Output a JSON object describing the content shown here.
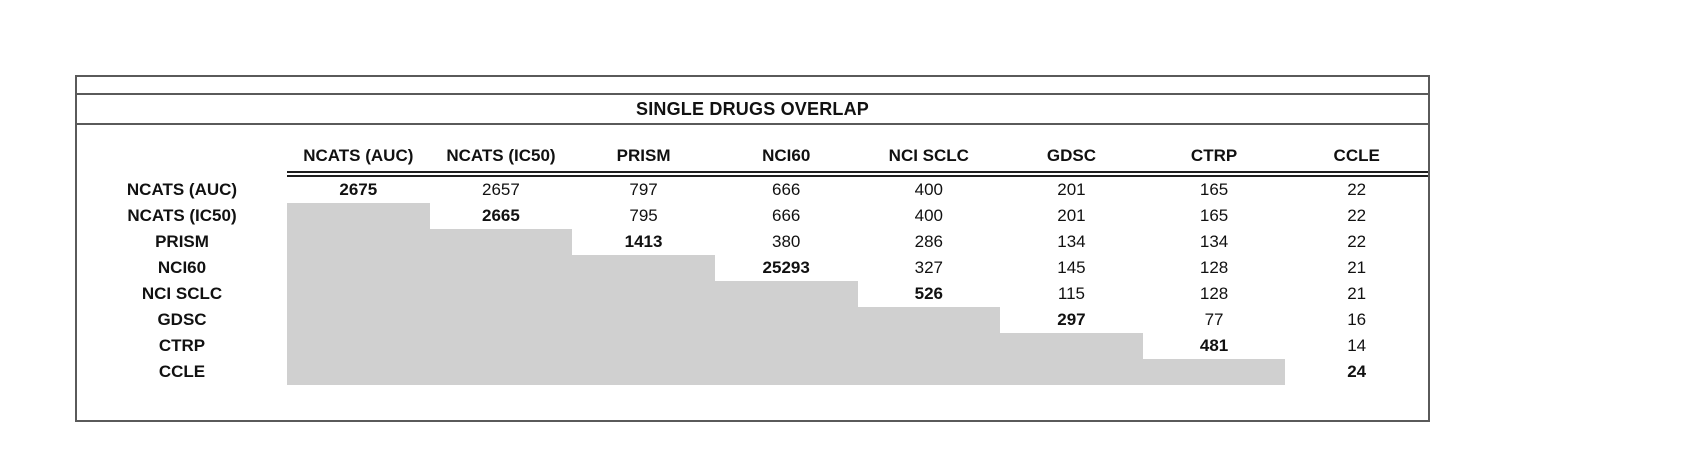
{
  "chart_data": {
    "type": "table",
    "title": "SINGLE DRUGS OVERLAP",
    "columns": [
      "NCATS (AUC)",
      "NCATS (IC50)",
      "PRISM",
      "NCI60",
      "NCI SCLC",
      "GDSC",
      "CTRP",
      "CCLE"
    ],
    "rows": [
      {
        "label": "NCATS (AUC)",
        "values": [
          "2675",
          "2657",
          "797",
          "666",
          "400",
          "201",
          "165",
          "22"
        ]
      },
      {
        "label": "NCATS (IC50)",
        "values": [
          null,
          "2665",
          "795",
          "666",
          "400",
          "201",
          "165",
          "22"
        ]
      },
      {
        "label": "PRISM",
        "values": [
          null,
          null,
          "1413",
          "380",
          "286",
          "134",
          "134",
          "22"
        ]
      },
      {
        "label": "NCI60",
        "values": [
          null,
          null,
          null,
          "25293",
          "327",
          "145",
          "128",
          "21"
        ]
      },
      {
        "label": "NCI SCLC",
        "values": [
          null,
          null,
          null,
          null,
          "526",
          "115",
          "128",
          "21"
        ]
      },
      {
        "label": "GDSC",
        "values": [
          null,
          null,
          null,
          null,
          null,
          "297",
          "77",
          "16"
        ]
      },
      {
        "label": "CTRP",
        "values": [
          null,
          null,
          null,
          null,
          null,
          null,
          "481",
          "14"
        ]
      },
      {
        "label": "CCLE",
        "values": [
          null,
          null,
          null,
          null,
          null,
          null,
          null,
          "24"
        ]
      }
    ],
    "layout_hints": {
      "diagonal_cells": "bold",
      "lower_triangle": "shaded grey, empty",
      "header_underline": "double line"
    }
  },
  "colors": {
    "shade": "#d0d0d0",
    "border": "#5a5a5a",
    "underline": "#1e1e1e",
    "text": "#111111",
    "background": "#ffffff"
  }
}
